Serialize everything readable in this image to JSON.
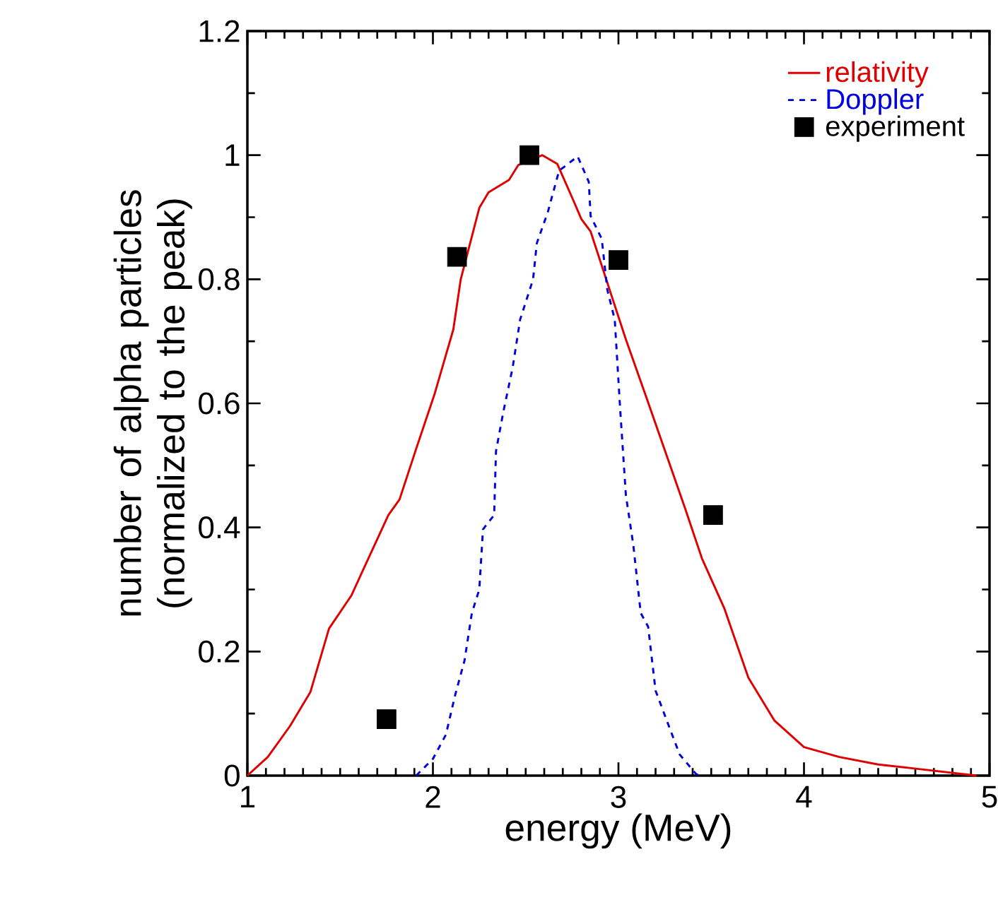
{
  "chart_data": {
    "type": "line",
    "xlabel": "energy (MeV)",
    "ylabel": "number of alpha particles (normalized to the peak)",
    "xlim": [
      1,
      5
    ],
    "ylim": [
      0,
      1.2
    ],
    "xticks": [
      1,
      2,
      3,
      4,
      5
    ],
    "yticks": [
      0,
      0.2,
      0.4,
      0.6,
      0.8,
      1,
      1.2
    ],
    "legend": "top right",
    "series": [
      {
        "name": "relativity",
        "color": "#e00000",
        "line_style": "solid",
        "x": [
          1,
          1.11,
          1.23,
          1.34,
          1.44,
          1.56,
          1.76,
          1.82,
          1.91,
          2.01,
          2.11,
          2.15,
          2.25,
          2.3,
          2.41,
          2.46,
          2.59,
          2.67,
          2.76,
          2.8,
          2.85,
          2.96,
          3.04,
          3.15,
          3.36,
          3.45,
          3.57,
          3.7,
          3.84,
          4,
          4.19,
          4.4,
          4.61,
          4.93
        ],
        "values": [
          0,
          0.03,
          0.08,
          0.135,
          0.237,
          0.29,
          0.42,
          0.445,
          0.527,
          0.616,
          0.719,
          0.8,
          0.915,
          0.94,
          0.96,
          0.984,
          1,
          0.986,
          0.925,
          0.897,
          0.877,
          0.776,
          0.703,
          0.61,
          0.43,
          0.35,
          0.27,
          0.158,
          0.089,
          0.046,
          0.03,
          0.018,
          0.011,
          0
        ]
      },
      {
        "name": "Doppler",
        "color": "#0000e0",
        "line_style": "dashed",
        "x": [
          1.91,
          2,
          2.07,
          2.12,
          2.17,
          2.21,
          2.25,
          2.27,
          2.33,
          2.34,
          2.38,
          2.43,
          2.47,
          2.54,
          2.56,
          2.62,
          2.68,
          2.72,
          2.78,
          2.84,
          2.85,
          2.91,
          2.94,
          2.98,
          3.01,
          3.04,
          3.08,
          3.12,
          3.16,
          3.2,
          3.26,
          3.33,
          3.42,
          3.45
        ],
        "values": [
          0,
          0.027,
          0.066,
          0.13,
          0.185,
          0.262,
          0.3,
          0.397,
          0.42,
          0.523,
          0.587,
          0.658,
          0.735,
          0.8,
          0.858,
          0.909,
          0.975,
          0.984,
          0.998,
          0.957,
          0.902,
          0.865,
          0.783,
          0.735,
          0.587,
          0.452,
          0.372,
          0.262,
          0.24,
          0.137,
          0.089,
          0.034,
          0.002,
          0
        ]
      },
      {
        "name": "experiment",
        "type": "scatter",
        "color": "#000000",
        "marker": "square",
        "x": [
          1.75,
          2.13,
          2.52,
          3,
          3.51
        ],
        "values": [
          0.091,
          0.836,
          1,
          0.831,
          0.42
        ]
      }
    ]
  }
}
